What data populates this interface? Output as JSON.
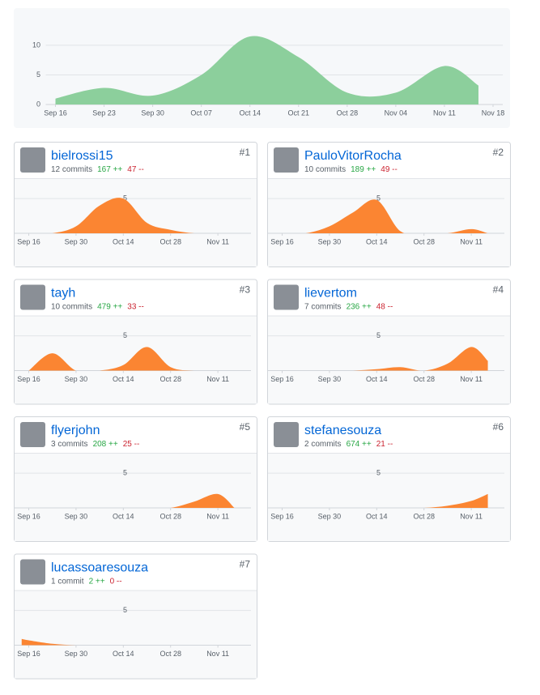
{
  "chart_data": [
    {
      "type": "area",
      "color": "#8ccf9c",
      "grid": true,
      "x": [
        0,
        1,
        2,
        3,
        4,
        5,
        6,
        7,
        8,
        8.7
      ],
      "values": [
        1,
        2.8,
        1.5,
        5,
        11.5,
        8,
        2,
        2,
        6.5,
        3.2
      ],
      "xlim": [
        -0.2,
        9.2
      ],
      "ylim": [
        0,
        13
      ],
      "yticks": [
        0,
        5,
        10
      ],
      "xticks": [
        {
          "value": 0,
          "label": "Sep 16"
        },
        {
          "value": 1,
          "label": "Sep 23"
        },
        {
          "value": 2,
          "label": "Sep 30"
        },
        {
          "value": 3,
          "label": "Oct 07"
        },
        {
          "value": 4,
          "label": "Oct 14"
        },
        {
          "value": 5,
          "label": "Oct 21"
        },
        {
          "value": 6,
          "label": "Oct 28"
        },
        {
          "value": 7,
          "label": "Nov 04"
        },
        {
          "value": 8,
          "label": "Nov 11"
        },
        {
          "value": 9,
          "label": "Nov 18"
        }
      ]
    },
    {
      "type": "area",
      "color": "#fb8532",
      "grid": true,
      "x": [
        0,
        1,
        2,
        3,
        4,
        5,
        6,
        7,
        8,
        8.7
      ],
      "values": [
        0,
        0,
        1,
        4,
        5,
        1.5,
        0.5,
        0,
        0,
        0
      ],
      "xlim": [
        -0.6,
        9.4
      ],
      "ylim": [
        0,
        7
      ],
      "yticks": [
        5
      ],
      "xticks": [
        {
          "value": 0,
          "label": "Sep 16"
        },
        {
          "value": 2,
          "label": "Sep 30"
        },
        {
          "value": 4,
          "label": "Oct 14"
        },
        {
          "value": 6,
          "label": "Oct 28"
        },
        {
          "value": 8,
          "label": "Nov 11"
        }
      ]
    },
    {
      "type": "area",
      "color": "#fb8532",
      "grid": true,
      "x": [
        0,
        1,
        2,
        3,
        4,
        5,
        6,
        7,
        8,
        8.7
      ],
      "values": [
        0,
        0,
        1,
        3,
        4.8,
        0.3,
        0,
        0,
        0.6,
        0
      ],
      "xlim": [
        -0.6,
        9.4
      ],
      "ylim": [
        0,
        7
      ],
      "yticks": [
        5
      ],
      "xticks": [
        {
          "value": 0,
          "label": "Sep 16"
        },
        {
          "value": 2,
          "label": "Sep 30"
        },
        {
          "value": 4,
          "label": "Oct 14"
        },
        {
          "value": 6,
          "label": "Oct 28"
        },
        {
          "value": 8,
          "label": "Nov 11"
        }
      ]
    },
    {
      "type": "area",
      "color": "#fb8532",
      "grid": true,
      "x": [
        0,
        1,
        2,
        3,
        4,
        5,
        6,
        7,
        8,
        8.7
      ],
      "values": [
        0,
        2.5,
        0,
        0,
        0.8,
        3.4,
        0.5,
        0,
        0,
        0
      ],
      "xlim": [
        -0.6,
        9.4
      ],
      "ylim": [
        0,
        7
      ],
      "yticks": [
        5
      ],
      "xticks": [
        {
          "value": 0,
          "label": "Sep 16"
        },
        {
          "value": 2,
          "label": "Sep 30"
        },
        {
          "value": 4,
          "label": "Oct 14"
        },
        {
          "value": 6,
          "label": "Oct 28"
        },
        {
          "value": 8,
          "label": "Nov 11"
        }
      ]
    },
    {
      "type": "area",
      "color": "#fb8532",
      "grid": true,
      "x": [
        0,
        1,
        2,
        3,
        4,
        5,
        6,
        7,
        8,
        8.7
      ],
      "values": [
        0,
        0,
        0,
        0,
        0.2,
        0.5,
        0,
        1,
        3.4,
        1.4
      ],
      "xlim": [
        -0.6,
        9.4
      ],
      "ylim": [
        0,
        7
      ],
      "yticks": [
        5
      ],
      "xticks": [
        {
          "value": 0,
          "label": "Sep 16"
        },
        {
          "value": 2,
          "label": "Sep 30"
        },
        {
          "value": 4,
          "label": "Oct 14"
        },
        {
          "value": 6,
          "label": "Oct 28"
        },
        {
          "value": 8,
          "label": "Nov 11"
        }
      ]
    },
    {
      "type": "area",
      "color": "#fb8532",
      "grid": true,
      "x": [
        0,
        1,
        2,
        3,
        4,
        5,
        6,
        7,
        8,
        8.7
      ],
      "values": [
        0,
        0,
        0,
        0,
        0,
        0,
        0,
        0.9,
        2,
        0
      ],
      "xlim": [
        -0.6,
        9.4
      ],
      "ylim": [
        0,
        7
      ],
      "yticks": [
        5
      ],
      "xticks": [
        {
          "value": 0,
          "label": "Sep 16"
        },
        {
          "value": 2,
          "label": "Sep 30"
        },
        {
          "value": 4,
          "label": "Oct 14"
        },
        {
          "value": 6,
          "label": "Oct 28"
        },
        {
          "value": 8,
          "label": "Nov 11"
        }
      ]
    },
    {
      "type": "area",
      "color": "#fb8532",
      "grid": true,
      "x": [
        0,
        1,
        2,
        3,
        4,
        5,
        6,
        7,
        8,
        8.7
      ],
      "values": [
        0,
        0,
        0,
        0,
        0,
        0,
        0,
        0.3,
        1,
        2
      ],
      "xlim": [
        -0.6,
        9.4
      ],
      "ylim": [
        0,
        7
      ],
      "yticks": [
        5
      ],
      "xticks": [
        {
          "value": 0,
          "label": "Sep 16"
        },
        {
          "value": 2,
          "label": "Sep 30"
        },
        {
          "value": 4,
          "label": "Oct 14"
        },
        {
          "value": 6,
          "label": "Oct 28"
        },
        {
          "value": 8,
          "label": "Nov 11"
        }
      ]
    },
    {
      "type": "area",
      "color": "#fb8532",
      "grid": true,
      "x": [
        -0.3,
        0,
        1,
        2,
        3,
        4,
        5,
        6,
        7,
        8
      ],
      "values": [
        0.9,
        0.7,
        0.2,
        0,
        0,
        0,
        0,
        0,
        0,
        0
      ],
      "xlim": [
        -0.6,
        9.4
      ],
      "ylim": [
        0,
        7
      ],
      "yticks": [
        5
      ],
      "xticks": [
        {
          "value": 0,
          "label": "Sep 16"
        },
        {
          "value": 2,
          "label": "Sep 30"
        },
        {
          "value": 4,
          "label": "Oct 14"
        },
        {
          "value": 6,
          "label": "Oct 28"
        },
        {
          "value": 8,
          "label": "Nov 11"
        }
      ]
    }
  ],
  "contributors": [
    {
      "name": "bielrossi15",
      "rank": "#1",
      "commits": "12 commits",
      "additions": "167 ++",
      "deletions": "47 --"
    },
    {
      "name": "PauloVitorRocha",
      "rank": "#2",
      "commits": "10 commits",
      "additions": "189 ++",
      "deletions": "49 --"
    },
    {
      "name": "tayh",
      "rank": "#3",
      "commits": "10 commits",
      "additions": "479 ++",
      "deletions": "33 --"
    },
    {
      "name": "lievertom",
      "rank": "#4",
      "commits": "7 commits",
      "additions": "236 ++",
      "deletions": "48 --"
    },
    {
      "name": "flyerjohn",
      "rank": "#5",
      "commits": "3 commits",
      "additions": "208 ++",
      "deletions": "25 --"
    },
    {
      "name": "stefanesouza",
      "rank": "#6",
      "commits": "2 commits",
      "additions": "674 ++",
      "deletions": "21 --"
    },
    {
      "name": "lucassoaresouza",
      "rank": "#7",
      "commits": "1 commit",
      "additions": "2 ++",
      "deletions": "0 --"
    }
  ]
}
